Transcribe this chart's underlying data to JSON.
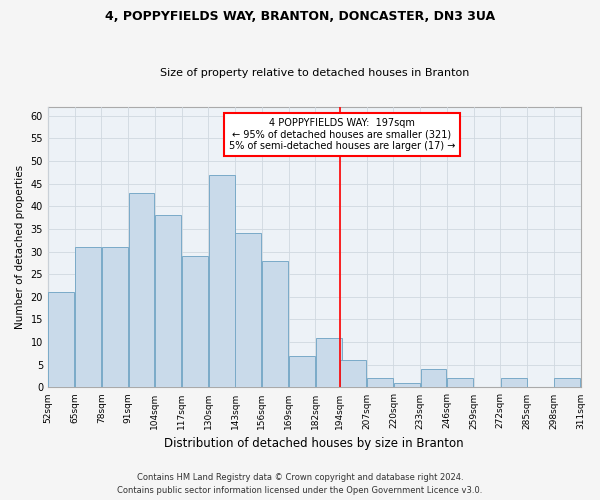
{
  "title1": "4, POPPYFIELDS WAY, BRANTON, DONCASTER, DN3 3UA",
  "title2": "Size of property relative to detached houses in Branton",
  "xlabel": "Distribution of detached houses by size in Branton",
  "ylabel": "Number of detached properties",
  "bar_values": [
    21,
    31,
    31,
    43,
    38,
    29,
    47,
    34,
    28,
    7,
    11,
    6,
    2,
    1,
    4,
    2,
    0,
    2,
    0,
    2
  ],
  "bin_edges": [
    52,
    65,
    78,
    91,
    104,
    117,
    130,
    143,
    156,
    169,
    182,
    194,
    207,
    220,
    233,
    246,
    259,
    272,
    285,
    298,
    311
  ],
  "tick_labels": [
    "52sqm",
    "65sqm",
    "78sqm",
    "91sqm",
    "104sqm",
    "117sqm",
    "130sqm",
    "143sqm",
    "156sqm",
    "169sqm",
    "182sqm",
    "194sqm",
    "207sqm",
    "220sqm",
    "233sqm",
    "246sqm",
    "259sqm",
    "272sqm",
    "285sqm",
    "298sqm",
    "311sqm"
  ],
  "bar_color": "#c9daea",
  "bar_edge_color": "#7aaac8",
  "grid_color": "#d0d8e0",
  "bg_color": "#edf2f7",
  "red_line_x": 194,
  "ylim": [
    0,
    62
  ],
  "yticks": [
    0,
    5,
    10,
    15,
    20,
    25,
    30,
    35,
    40,
    45,
    50,
    55,
    60
  ],
  "annotation_title": "4 POPPYFIELDS WAY:  197sqm",
  "annotation_line1": "← 95% of detached houses are smaller (321)",
  "annotation_line2": "5% of semi-detached houses are larger (17) →",
  "footer1": "Contains HM Land Registry data © Crown copyright and database right 2024.",
  "footer2": "Contains public sector information licensed under the Open Government Licence v3.0."
}
